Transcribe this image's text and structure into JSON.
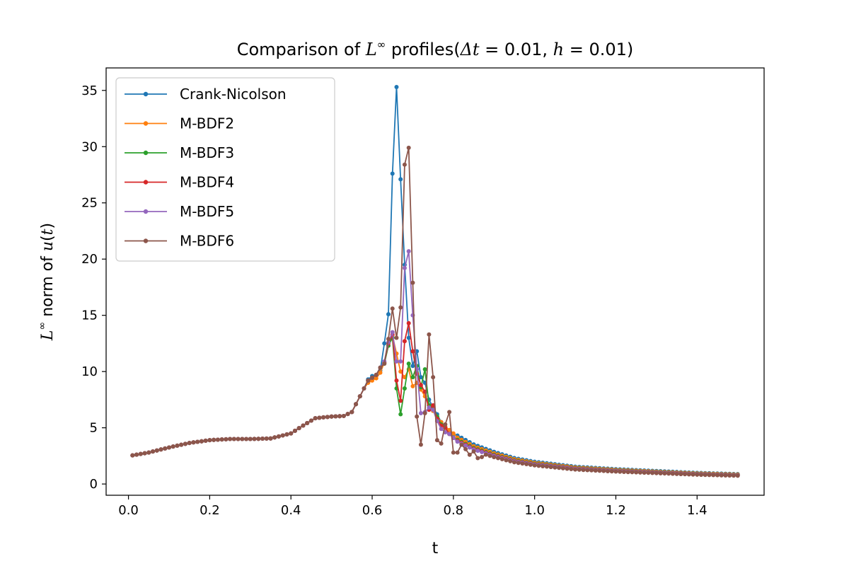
{
  "chart_data": {
    "type": "line",
    "title": {
      "prefix": "Comparison of ",
      "math1_base": "L",
      "math1_sup": "∞",
      "middle": " profiles(",
      "math2_dt": "Δt",
      "math2_eq1": " = 0.01, ",
      "math2_h": "h",
      "math2_eq2": " = 0.01",
      "suffix": ")"
    },
    "xlabel": "t",
    "ylabel": {
      "base": "L",
      "sup": "∞",
      "middle": " norm of ",
      "func": "u",
      "paren_open": "(",
      "var": "t",
      "paren_close": ")"
    },
    "xlim": [
      -0.055,
      1.565
    ],
    "ylim": [
      -1.0,
      37.0
    ],
    "xticks": [
      0.0,
      0.2,
      0.4,
      0.6,
      0.8,
      1.0,
      1.2,
      1.4
    ],
    "xtick_labels": [
      "0.0",
      "0.2",
      "0.4",
      "0.6",
      "0.8",
      "1.0",
      "1.2",
      "1.4"
    ],
    "yticks": [
      0,
      5,
      10,
      15,
      20,
      25,
      30,
      35
    ],
    "ytick_labels": [
      "0",
      "5",
      "10",
      "15",
      "20",
      "25",
      "30",
      "35"
    ],
    "grid": false,
    "legend_position": "upper-left",
    "x_range": {
      "start": 0.01,
      "end": 1.5,
      "step": 0.01
    },
    "base_curve": {
      "x": [
        0.01,
        0.05,
        0.1,
        0.15,
        0.2,
        0.25,
        0.3,
        0.35,
        0.4,
        0.43,
        0.46,
        0.5,
        0.53,
        0.55,
        0.57,
        0.59,
        0.61,
        0.63,
        0.65,
        0.68,
        0.72,
        0.76,
        0.8,
        0.85,
        0.9,
        0.95,
        1.0,
        1.1,
        1.2,
        1.3,
        1.4,
        1.5
      ],
      "y": [
        2.55,
        2.8,
        3.25,
        3.65,
        3.9,
        4.0,
        4.0,
        4.05,
        4.5,
        5.2,
        5.85,
        6.0,
        6.05,
        6.4,
        7.8,
        9.2,
        9.7,
        11.0,
        12.5,
        12.0,
        8.0,
        5.5,
        4.1,
        3.2,
        2.6,
        2.1,
        1.8,
        1.4,
        1.2,
        1.05,
        0.9,
        0.8
      ]
    },
    "series": [
      {
        "name": "Crank-Nicolson",
        "color": "#1f77b4",
        "tail_scale": 1.1,
        "overrides": {
          "0.59": 9.3,
          "0.60": 9.6,
          "0.61": 9.7,
          "0.62": 10.1,
          "0.63": 12.5,
          "0.64": 15.1,
          "0.65": 27.6,
          "0.66": 35.3,
          "0.67": 27.1,
          "0.68": 19.5,
          "0.69": 13.0,
          "0.70": 10.5,
          "0.71": 11.8,
          "0.72": 9.5,
          "0.73": 9.0,
          "0.74": 7.5,
          "0.75": 6.8,
          "0.76": 6.2,
          "0.77": 5.5,
          "0.78": 5.0,
          "0.79": 4.7,
          "0.80": 4.4
        }
      },
      {
        "name": "M-BDF2",
        "color": "#ff7f0e",
        "tail_scale": 1.05,
        "overrides": {
          "0.59": 9.0,
          "0.60": 9.2,
          "0.61": 9.4,
          "0.62": 9.9,
          "0.63": 10.8,
          "0.64": 12.5,
          "0.65": 13.2,
          "0.66": 11.6,
          "0.67": 10.0,
          "0.68": 9.5,
          "0.69": 10.2,
          "0.70": 8.7,
          "0.71": 9.0,
          "0.72": 8.4,
          "0.73": 7.8,
          "0.74": 7.0,
          "0.75": 6.5,
          "0.76": 6.0,
          "0.77": 5.5,
          "0.78": 5.1,
          "0.79": 4.8,
          "0.80": 4.5
        }
      },
      {
        "name": "M-BDF3",
        "color": "#2ca02c",
        "tail_scale": 1.0,
        "overrides": {
          "0.63": 10.7,
          "0.64": 12.3,
          "0.65": 13.0,
          "0.66": 8.5,
          "0.67": 6.2,
          "0.68": 8.5,
          "0.69": 10.7,
          "0.70": 9.5,
          "0.71": 10.5,
          "0.72": 8.6,
          "0.73": 10.2,
          "0.74": 7.0,
          "0.75": 6.8,
          "0.76": 6.0,
          "0.77": 5.3,
          "0.78": 5.0
        }
      },
      {
        "name": "M-BDF4",
        "color": "#d62728",
        "tail_scale": 0.98,
        "overrides": {
          "0.63": 10.8,
          "0.64": 12.5,
          "0.65": 13.3,
          "0.66": 9.2,
          "0.67": 7.4,
          "0.68": 12.7,
          "0.69": 14.3,
          "0.70": 11.8,
          "0.71": 9.8,
          "0.72": 8.8,
          "0.73": 8.2,
          "0.74": 6.6,
          "0.75": 7.0,
          "0.76": 5.8,
          "0.77": 5.2,
          "0.78": 5.0
        }
      },
      {
        "name": "M-BDF5",
        "color": "#9467bd",
        "tail_scale": 0.96,
        "overrides": {
          "0.63": 10.9,
          "0.64": 12.6,
          "0.65": 13.5,
          "0.66": 10.9,
          "0.67": 10.9,
          "0.68": 19.2,
          "0.69": 20.7,
          "0.70": 15.0,
          "0.71": 10.2,
          "0.72": 6.3,
          "0.73": 6.4,
          "0.74": 6.8,
          "0.75": 6.6,
          "0.76": 5.6,
          "0.77": 4.9,
          "0.78": 4.6
        }
      },
      {
        "name": "M-BDF6",
        "color": "#8c564b",
        "tail_scale": 0.92,
        "overrides": {
          "0.63": 10.7,
          "0.64": 12.9,
          "0.65": 15.6,
          "0.66": 13.0,
          "0.67": 15.7,
          "0.68": 28.4,
          "0.69": 29.9,
          "0.70": 17.9,
          "0.71": 6.0,
          "0.72": 3.5,
          "0.73": 6.3,
          "0.74": 13.3,
          "0.75": 9.5,
          "0.76": 3.9,
          "0.77": 3.6,
          "0.78": 5.3,
          "0.79": 6.4,
          "0.80": 2.8,
          "0.81": 2.8,
          "0.82": 3.5,
          "0.83": 3.1,
          "0.84": 2.6,
          "0.85": 2.9,
          "0.86": 2.3,
          "0.87": 2.4
        }
      }
    ]
  }
}
